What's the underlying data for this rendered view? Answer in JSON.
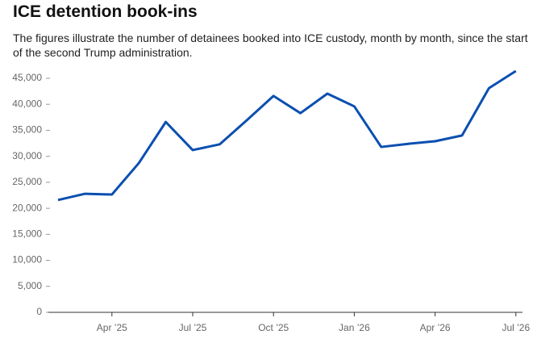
{
  "chart_data": {
    "type": "line",
    "title": "ICE detention book-ins",
    "subtitle": "The figures illustrate the number of detainees booked into ICE custody, month by month, since the start of the second Trump administration.",
    "categories": [
      null,
      null,
      "Apr ’25",
      null,
      null,
      "Jul ’25",
      null,
      null,
      "Oct ’25",
      null,
      null,
      "Jan ’26",
      null,
      null,
      "Apr ’26",
      null,
      null,
      "Jul ’26"
    ],
    "series": [
      {
        "name": "Book-ins",
        "color": "#0b4fb0",
        "values": [
          21600,
          22800,
          22650,
          28700,
          36600,
          31200,
          32300,
          36900,
          41600,
          38300,
          42050,
          39600,
          31800,
          32400,
          32900,
          34000,
          43100,
          46400
        ]
      }
    ],
    "ylim": [
      0,
      45000
    ],
    "yticks": [
      0,
      {
        "value": 5000,
        "label": "5,000"
      },
      {
        "value": 10000,
        "label": "10,000"
      },
      {
        "value": 15000,
        "label": "15,000"
      },
      {
        "value": 20000,
        "label": "20,000"
      },
      {
        "value": 25000,
        "label": "25,000"
      },
      {
        "value": 30000,
        "label": "30,000"
      },
      {
        "value": 35000,
        "label": "35,000"
      },
      {
        "value": 40000,
        "label": "40,000"
      },
      {
        "value": 45000,
        "label": "45,000"
      }
    ],
    "grid": false
  }
}
